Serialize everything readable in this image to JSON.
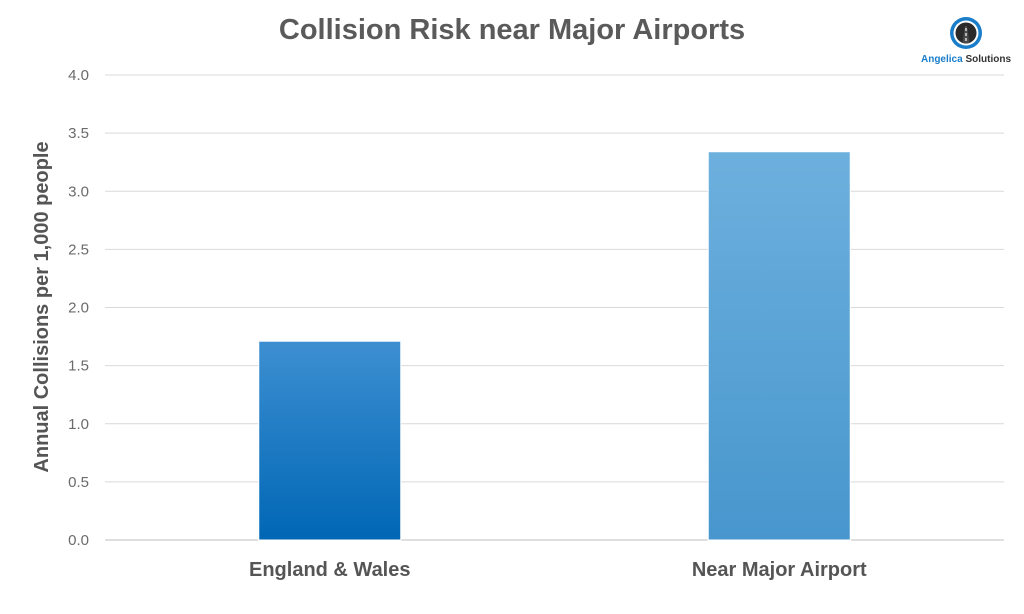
{
  "chart_data": {
    "type": "bar",
    "title": "Collision Risk near Major Airports",
    "xlabel": "",
    "ylabel": "Annual Collisions per 1,000 people",
    "categories": [
      "England & Wales",
      "Near Major Airport"
    ],
    "values": [
      1.71,
      3.34
    ],
    "ylim": [
      0,
      4
    ],
    "yticks": [
      "0.0",
      "0.5",
      "1.0",
      "1.5",
      "2.0",
      "2.5",
      "3.0",
      "3.5",
      "4.0"
    ],
    "grid": true,
    "legend": "none",
    "colors": [
      "#0a6fbd",
      "#5aa8dc"
    ]
  },
  "logo": {
    "brand_part1": "Angelica",
    "brand_part2": " Solutions",
    "icon": "road-icon"
  }
}
